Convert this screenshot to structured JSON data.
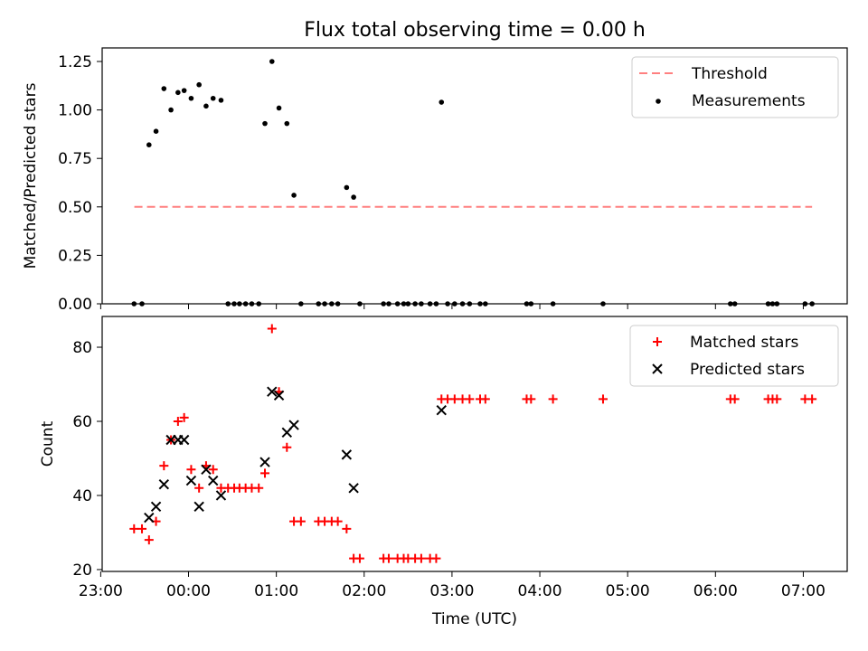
{
  "title": "Flux total observing time = 0.00 h",
  "chart_data": [
    {
      "type": "scatter",
      "panel": "top",
      "ylabel": "Matched/Predicted stars",
      "xlim": [
        -0.9833,
        7.5
      ],
      "ylim": [
        0,
        1.32
      ],
      "yticks": [
        0.0,
        0.25,
        0.5,
        0.75,
        1.0,
        1.25
      ],
      "ytick_labels": [
        "0.00",
        "0.25",
        "0.50",
        "0.75",
        "1.00",
        "1.25"
      ],
      "legend": "top-right",
      "threshold": {
        "name": "Threshold",
        "value": 0.5,
        "x_range": [
          -0.617,
          7.1
        ],
        "color": "#ff8080"
      },
      "series": [
        {
          "name": "Measurements",
          "color": "#000000",
          "x": [
            -0.45,
            -0.37,
            -0.28,
            -0.2,
            -0.12,
            -0.05,
            0.03,
            0.12,
            0.2,
            0.28,
            0.37,
            0.87,
            0.95,
            1.03,
            1.12,
            1.2,
            1.8,
            1.88,
            2.88,
            -0.62,
            -0.53,
            0.45,
            0.52,
            0.58,
            0.65,
            0.72,
            0.8,
            1.28,
            1.48,
            1.55,
            1.63,
            1.7,
            1.95,
            2.22,
            2.28,
            2.38,
            2.45,
            2.5,
            2.58,
            2.65,
            2.75,
            2.82,
            2.95,
            3.03,
            3.12,
            3.2,
            3.32,
            3.38,
            3.85,
            3.9,
            4.15,
            4.72,
            6.17,
            6.22,
            6.6,
            6.65,
            6.7,
            7.02,
            7.1
          ],
          "y": [
            0.82,
            0.89,
            1.11,
            1.0,
            1.09,
            1.1,
            1.06,
            1.13,
            1.02,
            1.06,
            1.05,
            0.93,
            1.25,
            1.01,
            0.93,
            0.56,
            0.6,
            0.55,
            1.04,
            0,
            0,
            0,
            0,
            0,
            0,
            0,
            0,
            0,
            0,
            0,
            0,
            0,
            0,
            0,
            0,
            0,
            0,
            0,
            0,
            0,
            0,
            0,
            0,
            0,
            0,
            0,
            0,
            0,
            0,
            0,
            0,
            0,
            0,
            0,
            0,
            0,
            0,
            0,
            0
          ]
        }
      ]
    },
    {
      "type": "scatter",
      "panel": "bottom",
      "xlabel": "Time (UTC)",
      "ylabel": "Count",
      "xlim": [
        -0.9833,
        7.5
      ],
      "ylim": [
        19.5,
        88.3
      ],
      "yticks": [
        20,
        40,
        60,
        80
      ],
      "xticks": [
        -1,
        0,
        1,
        2,
        3,
        4,
        5,
        6,
        7
      ],
      "xtick_labels": [
        "23:00",
        "00:00",
        "01:00",
        "02:00",
        "03:00",
        "04:00",
        "05:00",
        "06:00",
        "07:00"
      ],
      "legend": "top-right",
      "series": [
        {
          "name": "Matched stars",
          "color": "#ff0000",
          "marker": "plus",
          "x": [
            -0.62,
            -0.53,
            -0.45,
            -0.37,
            -0.28,
            -0.2,
            -0.12,
            -0.05,
            0.03,
            0.12,
            0.2,
            0.28,
            0.37,
            0.45,
            0.52,
            0.58,
            0.65,
            0.72,
            0.8,
            0.87,
            0.95,
            1.03,
            1.12,
            1.2,
            1.28,
            1.48,
            1.55,
            1.63,
            1.7,
            1.8,
            1.88,
            1.95,
            2.22,
            2.28,
            2.38,
            2.45,
            2.5,
            2.58,
            2.65,
            2.75,
            2.82,
            2.88,
            2.95,
            3.03,
            3.12,
            3.2,
            3.32,
            3.38,
            3.85,
            3.9,
            4.15,
            4.72,
            6.17,
            6.22,
            6.6,
            6.65,
            6.7,
            7.02,
            7.1
          ],
          "y": [
            31,
            31,
            28,
            33,
            48,
            55,
            60,
            61,
            47,
            42,
            48,
            47,
            42,
            42,
            42,
            42,
            42,
            42,
            42,
            46,
            85,
            68,
            53,
            33,
            33,
            33,
            33,
            33,
            33,
            31,
            23,
            23,
            23,
            23,
            23,
            23,
            23,
            23,
            23,
            23,
            23,
            66,
            66,
            66,
            66,
            66,
            66,
            66,
            66,
            66,
            66,
            66,
            66,
            66,
            66,
            66,
            66,
            66,
            66
          ]
        },
        {
          "name": "Predicted stars",
          "color": "#000000",
          "marker": "x",
          "x": [
            -0.45,
            -0.37,
            -0.28,
            -0.2,
            -0.12,
            -0.05,
            0.03,
            0.12,
            0.2,
            0.28,
            0.37,
            0.87,
            0.95,
            1.03,
            1.12,
            1.2,
            1.8,
            1.88,
            2.88
          ],
          "y": [
            34,
            37,
            43,
            55,
            55,
            55,
            44,
            37,
            47,
            44,
            40,
            49,
            68,
            67,
            57,
            59,
            51,
            42,
            63
          ]
        }
      ]
    }
  ]
}
